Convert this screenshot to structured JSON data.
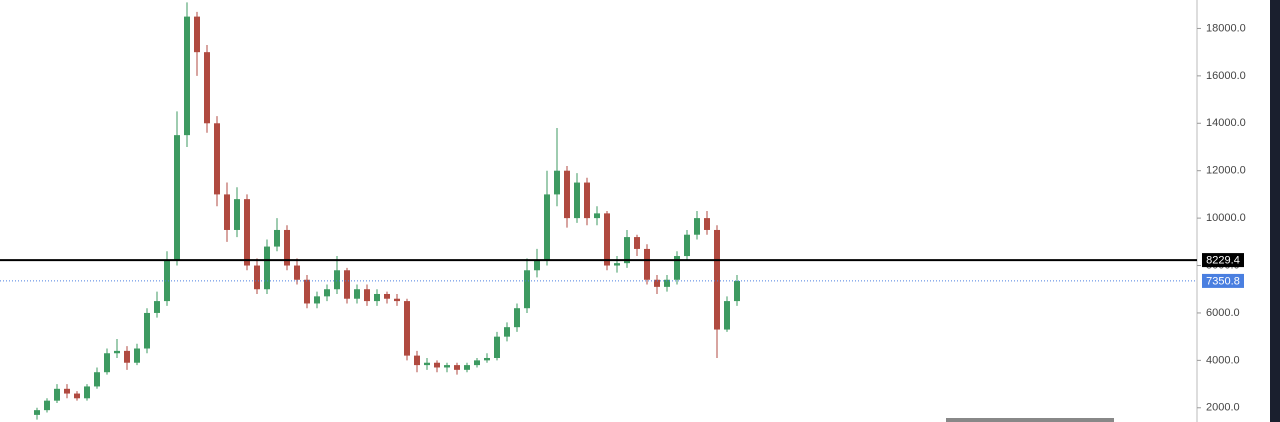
{
  "chart_data": {
    "type": "candlestick",
    "up_color": "#3d9a61",
    "down_color": "#b04a40",
    "open": [
      1700,
      1900,
      2300,
      2800,
      2600,
      2400,
      2900,
      3500,
      4300,
      4400,
      3900,
      4500,
      6000,
      6500,
      8200,
      13500,
      18500,
      17000,
      14000,
      11000,
      9500,
      10800,
      8000,
      7000,
      8800,
      9500,
      8000,
      7400,
      6400,
      6700,
      7000,
      7800,
      6600,
      7000,
      6500,
      6800,
      6600,
      6500,
      4200,
      3800,
      3900,
      3700,
      3800,
      3600,
      3800,
      4000,
      4100,
      5000,
      5400,
      6200,
      7800,
      8200,
      11000,
      12000,
      10000,
      11500,
      10000,
      10200,
      8000,
      8100,
      9200,
      8700,
      7400,
      7100,
      7400,
      8400,
      9300,
      10000,
      9500,
      5300,
      6500
    ],
    "high": [
      2000,
      2400,
      3000,
      3000,
      2700,
      3000,
      3700,
      4500,
      4900,
      4600,
      4700,
      6200,
      6900,
      8600,
      14500,
      19100,
      18700,
      17300,
      14300,
      11500,
      11300,
      11000,
      8300,
      9100,
      10000,
      9700,
      8300,
      7600,
      6900,
      7200,
      8400,
      7900,
      7200,
      7200,
      7000,
      6900,
      6800,
      6600,
      4400,
      4100,
      4000,
      3900,
      3900,
      3900,
      4100,
      4300,
      5200,
      5600,
      6400,
      8300,
      8700,
      12000,
      13800,
      12200,
      11900,
      11700,
      10500,
      10300,
      8400,
      9500,
      9300,
      8900,
      7600,
      7600,
      8600,
      9500,
      10300,
      10300,
      9700,
      6700,
      7600
    ],
    "low": [
      1500,
      1800,
      2200,
      2400,
      2300,
      2300,
      2800,
      3400,
      4100,
      3600,
      3800,
      4300,
      5800,
      6300,
      8000,
      13000,
      16000,
      13600,
      10500,
      9000,
      9200,
      7800,
      6800,
      6800,
      8600,
      7800,
      7200,
      6200,
      6200,
      6500,
      6800,
      6400,
      6400,
      6300,
      6300,
      6400,
      6300,
      4000,
      3500,
      3600,
      3500,
      3500,
      3400,
      3500,
      3700,
      3900,
      4000,
      4800,
      5200,
      6000,
      7500,
      8000,
      10500,
      9600,
      9800,
      9700,
      9700,
      7800,
      7700,
      7900,
      8400,
      7200,
      6800,
      6900,
      7200,
      8200,
      9100,
      9300,
      4100,
      5200,
      6300
    ],
    "close": [
      1900,
      2300,
      2800,
      2600,
      2400,
      2900,
      3500,
      4300,
      4400,
      3900,
      4500,
      6000,
      6500,
      8200,
      13500,
      18500,
      17000,
      14000,
      11000,
      9500,
      10800,
      8000,
      7000,
      8800,
      9500,
      8000,
      7400,
      6400,
      6700,
      7000,
      7800,
      6600,
      7000,
      6500,
      6800,
      6600,
      6500,
      4200,
      3800,
      3900,
      3700,
      3800,
      3600,
      3800,
      4000,
      4100,
      5000,
      5400,
      6200,
      7800,
      8200,
      11000,
      12000,
      10000,
      11500,
      10000,
      10200,
      8000,
      8100,
      9200,
      8700,
      7400,
      7100,
      7400,
      8400,
      9300,
      10000,
      9500,
      5300,
      6500,
      7350
    ],
    "ylim": [
      1400,
      19200
    ],
    "yticks": [
      {
        "value": 2000,
        "label": "2000.0"
      },
      {
        "value": 4000,
        "label": "4000.0"
      },
      {
        "value": 6000,
        "label": "6000.0"
      },
      {
        "value": 8000,
        "label": "8000.0"
      },
      {
        "value": 10000,
        "label": "10000.0"
      },
      {
        "value": 12000,
        "label": "12000.0"
      },
      {
        "value": 14000,
        "label": "14000.0"
      },
      {
        "value": 16000,
        "label": "16000.0"
      },
      {
        "value": 18000,
        "label": "18000.0"
      }
    ],
    "price_lines": [
      {
        "value": 8229.4,
        "label": "8229.4",
        "color": "#000000",
        "style": "solid"
      },
      {
        "value": 7350.8,
        "label": "7350.8",
        "color": "#4a7fe0",
        "style": "dotted"
      }
    ]
  }
}
